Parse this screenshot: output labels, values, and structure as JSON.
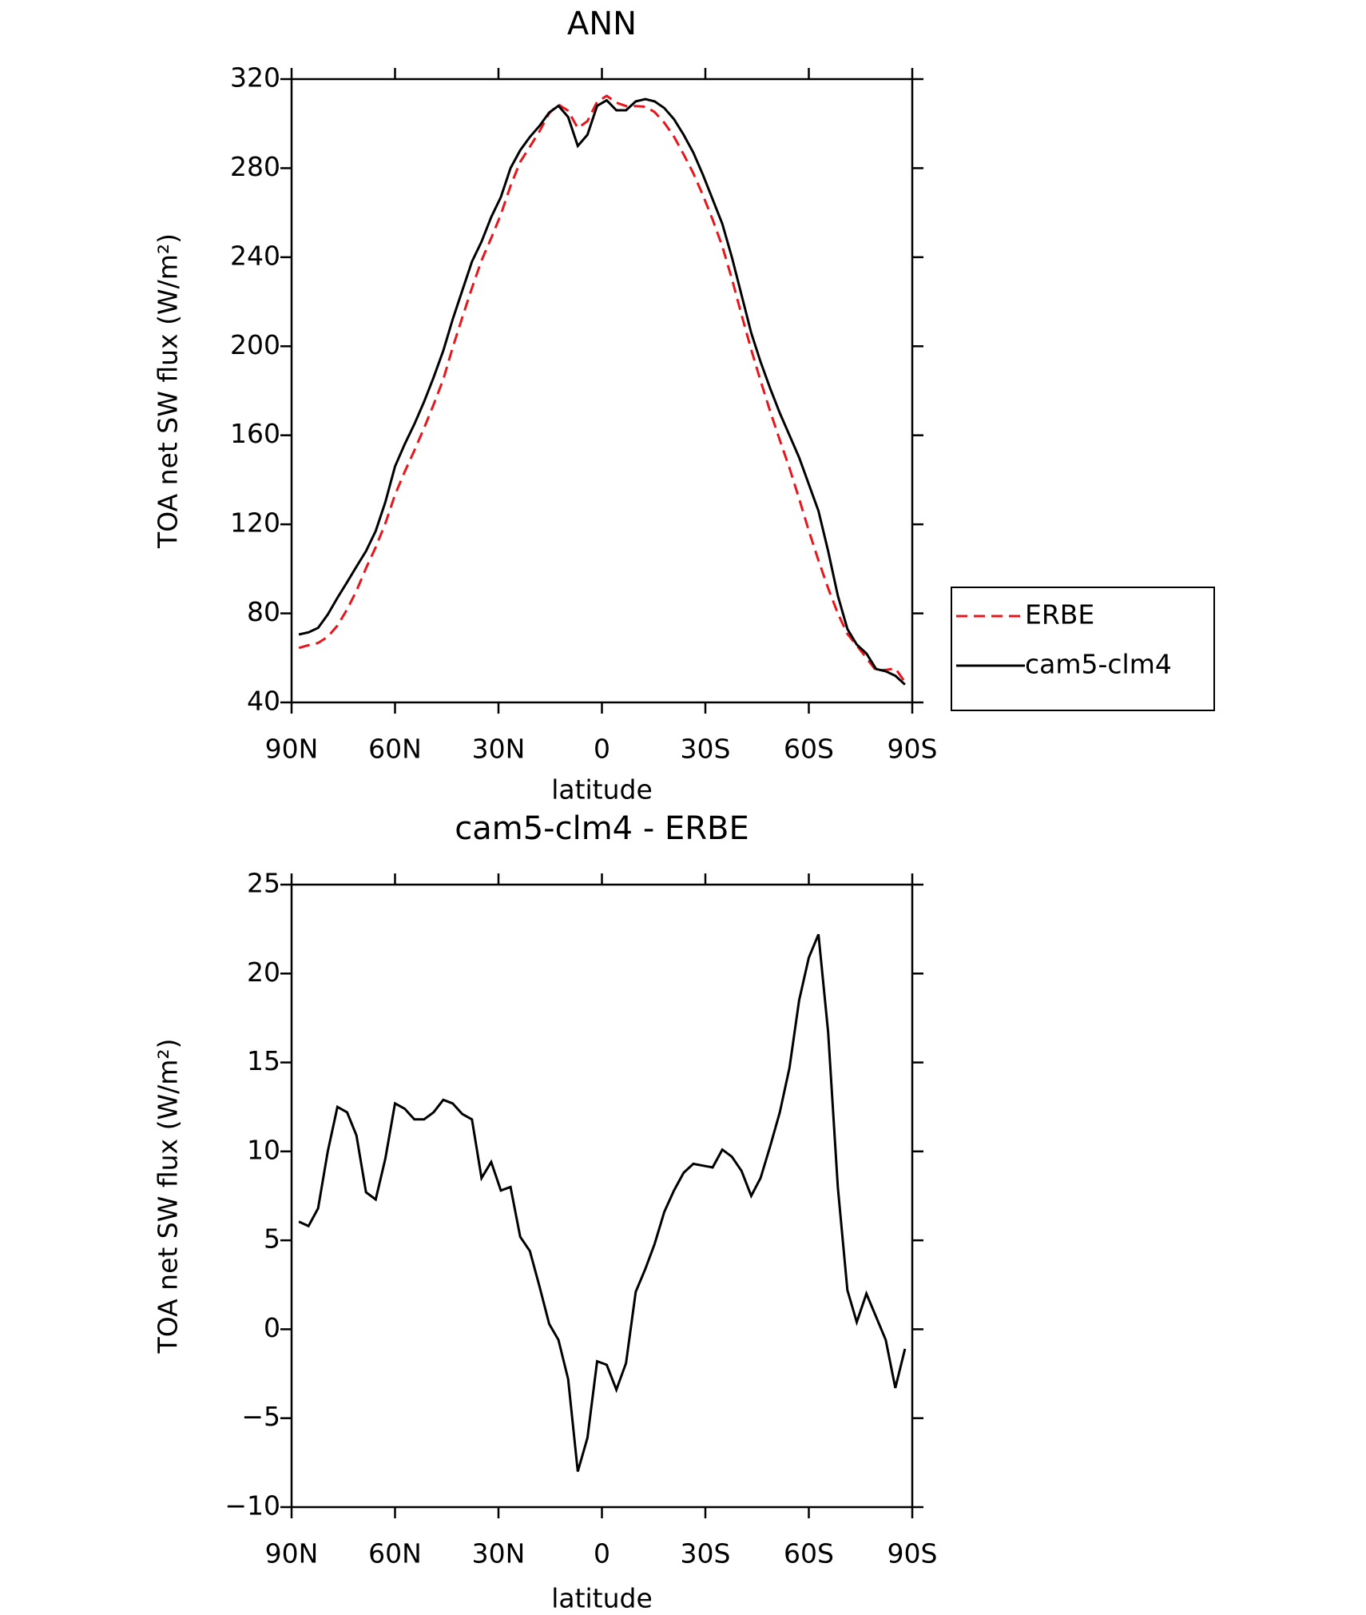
{
  "chart_data": [
    {
      "type": "line",
      "title": "ANN",
      "xlabel": "latitude",
      "ylabel": "TOA net SW flux (W/m²)",
      "x": [
        87.9,
        85.1,
        82.3,
        79.5,
        76.7,
        73.9,
        71.2,
        68.4,
        65.6,
        62.8,
        60.0,
        57.2,
        54.4,
        51.6,
        48.8,
        46.0,
        43.3,
        40.5,
        37.7,
        34.9,
        32.1,
        29.3,
        26.5,
        23.7,
        20.9,
        18.1,
        15.3,
        12.6,
        9.8,
        7.0,
        4.2,
        1.4,
        -1.4,
        -4.2,
        -7.0,
        -9.8,
        -12.6,
        -15.3,
        -18.1,
        -20.9,
        -23.7,
        -26.5,
        -29.3,
        -32.1,
        -34.9,
        -37.7,
        -40.5,
        -43.3,
        -46.0,
        -48.8,
        -51.6,
        -54.4,
        -57.2,
        -60.0,
        -62.8,
        -65.6,
        -68.4,
        -71.2,
        -73.9,
        -76.7,
        -79.5,
        -82.3,
        -85.1,
        -87.9
      ],
      "series": [
        {
          "name": "ERBE",
          "color": "#e8161b",
          "dash": "dashed",
          "values": [
            64.5,
            65.7,
            66.7,
            69.5,
            74.5,
            81.8,
            90.1,
            100.3,
            109.7,
            120.4,
            133.3,
            143.6,
            153.2,
            163.2,
            173.8,
            185.1,
            199.3,
            212.9,
            226.2,
            238.5,
            248.6,
            259.2,
            272,
            282.8,
            289.6,
            296.6,
            304.7,
            308.6,
            305.8,
            298,
            301.1,
            309.8,
            312.5,
            309.4,
            307.9,
            307.9,
            307.6,
            305.2,
            300.4,
            294.2,
            286.2,
            277.7,
            267.8,
            256.9,
            244.9,
            230.3,
            214.1,
            198.5,
            184.5,
            170.7,
            157.8,
            145.3,
            131.5,
            117.1,
            103.8,
            91.3,
            80,
            70.8,
            65.6,
            60,
            54.3,
            54.6,
            55.3,
            49.1
          ]
        },
        {
          "name": "cam5-clm4",
          "color": "#000000",
          "dash": "solid",
          "values": [
            70.5,
            71.5,
            73.5,
            79.5,
            87,
            94,
            101,
            108,
            117,
            130,
            146,
            156,
            165,
            175,
            186,
            198,
            212,
            225,
            238,
            247,
            258,
            267,
            280,
            288,
            294,
            299,
            305,
            308,
            303,
            290,
            295,
            308,
            310.5,
            306,
            306,
            310,
            311,
            310,
            307,
            302,
            295,
            287,
            277,
            266,
            255,
            240,
            223,
            206,
            193,
            181,
            170,
            160,
            150,
            138,
            126,
            108,
            88,
            73,
            66,
            62,
            55,
            54,
            52,
            48
          ]
        }
      ],
      "xlim": [
        90,
        -90
      ],
      "xticks": [
        {
          "value": 90,
          "label": "90N"
        },
        {
          "value": 60,
          "label": "60N"
        },
        {
          "value": 30,
          "label": "30N"
        },
        0,
        {
          "value": -30,
          "label": "30S"
        },
        {
          "value": -60,
          "label": "60S"
        },
        {
          "value": -90,
          "label": "90S"
        }
      ],
      "ylim": [
        40,
        320
      ],
      "yticks": [
        40,
        80,
        120,
        160,
        200,
        240,
        280,
        320
      ],
      "legend": "right"
    },
    {
      "type": "line",
      "title": "cam5-clm4 - ERBE",
      "xlabel": "latitude",
      "ylabel": "TOA net SW flux (W/m²)",
      "x": [
        87.9,
        85.1,
        82.3,
        79.5,
        76.7,
        73.9,
        71.2,
        68.4,
        65.6,
        62.8,
        60.0,
        57.2,
        54.4,
        51.6,
        48.8,
        46.0,
        43.3,
        40.5,
        37.7,
        34.9,
        32.1,
        29.3,
        26.5,
        23.7,
        20.9,
        18.1,
        15.3,
        12.6,
        9.8,
        7.0,
        4.2,
        1.4,
        -1.4,
        -4.2,
        -7.0,
        -9.8,
        -12.6,
        -15.3,
        -18.1,
        -20.9,
        -23.7,
        -26.5,
        -29.3,
        -32.1,
        -34.9,
        -37.7,
        -40.5,
        -43.3,
        -46.0,
        -48.8,
        -51.6,
        -54.4,
        -57.2,
        -60.0,
        -62.8,
        -65.6,
        -68.4,
        -71.2,
        -73.9,
        -76.7,
        -79.5,
        -82.3,
        -85.1,
        -87.9
      ],
      "values": [
        6.05,
        5.8,
        6.8,
        10,
        12.5,
        12.2,
        10.9,
        7.7,
        7.3,
        9.6,
        12.7,
        12.4,
        11.8,
        11.8,
        12.2,
        12.9,
        12.7,
        12.1,
        11.8,
        8.5,
        9.4,
        7.8,
        8,
        5.2,
        4.4,
        2.4,
        0.3,
        -0.6,
        -2.8,
        -8,
        -6.1,
        -1.8,
        -2,
        -3.4,
        -1.9,
        2.1,
        3.4,
        4.8,
        6.6,
        7.8,
        8.8,
        9.3,
        9.2,
        9.1,
        10.1,
        9.7,
        8.9,
        7.5,
        8.5,
        10.3,
        12.2,
        14.7,
        18.5,
        20.9,
        22.2,
        16.7,
        8,
        2.2,
        0.4,
        2,
        0.7,
        -0.6,
        -3.3,
        -1.1
      ],
      "color": "#000000",
      "xlim": [
        90,
        -90
      ],
      "xticks": [
        {
          "value": 90,
          "label": "90N"
        },
        {
          "value": 60,
          "label": "60N"
        },
        {
          "value": 30,
          "label": "30N"
        },
        0,
        {
          "value": -30,
          "label": "30S"
        },
        {
          "value": -60,
          "label": "60S"
        },
        {
          "value": -90,
          "label": "90S"
        }
      ],
      "ylim": [
        -10,
        25
      ],
      "yticks": [
        {
          "value": -10,
          "label": "−10"
        },
        {
          "value": -5,
          "label": "−5"
        },
        0,
        5,
        10,
        15,
        20,
        25
      ]
    }
  ]
}
